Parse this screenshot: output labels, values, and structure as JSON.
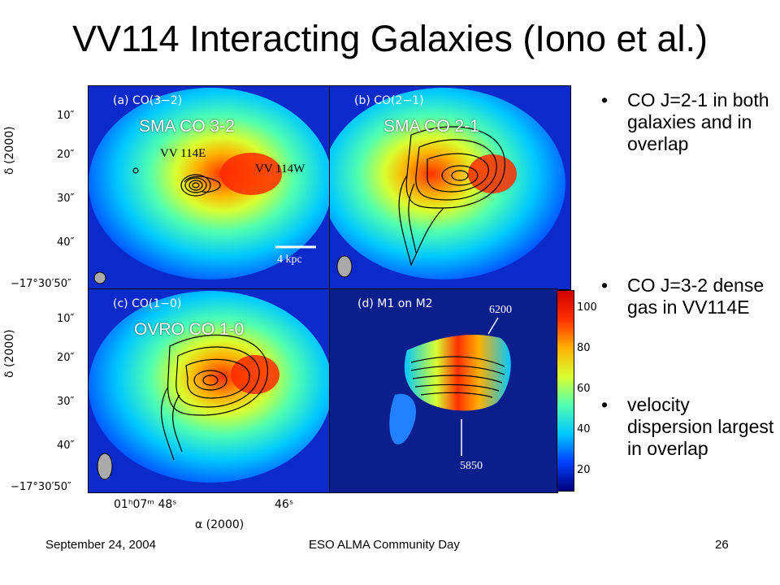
{
  "slide": {
    "title": "VV114 Interacting Galaxies (Iono et al.)",
    "bullets": [
      "CO J=2-1 in both galaxies and in overlap",
      "CO J=3-2 dense gas in VV114E",
      "velocity dispersion largest in overlap"
    ],
    "footer": {
      "date": "September 24, 2004",
      "event": "ESO ALMA Community Day",
      "page": "26"
    }
  },
  "figure": {
    "panels": {
      "a": {
        "label": "(a)  CO(3−2)",
        "overlay": "SMA  CO 3-2"
      },
      "b": {
        "label": "(b)  CO(2−1)",
        "overlay": "SMA  CO 2-1"
      },
      "c": {
        "label": "(c)  CO(1−0)",
        "overlay": "OVRO CO 1-0"
      },
      "d": {
        "label": "(d)  M1  on  M2"
      }
    },
    "annotations": {
      "vv114e": "VV 114E",
      "vv114w": "VV 114W",
      "scale": "4 kpc",
      "vel_high": "6200",
      "vel_low": "5850"
    },
    "yticks": [
      "10″",
      "20″",
      "30″",
      "40″",
      "−17°30′50″"
    ],
    "ylabel": "δ (2000)",
    "xticks": [
      "01ʰ07ᵐ 48ˢ",
      "46ˢ"
    ],
    "xlabel": "α (2000)",
    "colorbar_ticks": [
      "100",
      "80",
      "60",
      "40",
      "20"
    ],
    "colormap": [
      "#00007a",
      "#0040ff",
      "#00c8ff",
      "#50ffb0",
      "#d8ff30",
      "#ffb000",
      "#ff3000",
      "#d00000"
    ]
  }
}
